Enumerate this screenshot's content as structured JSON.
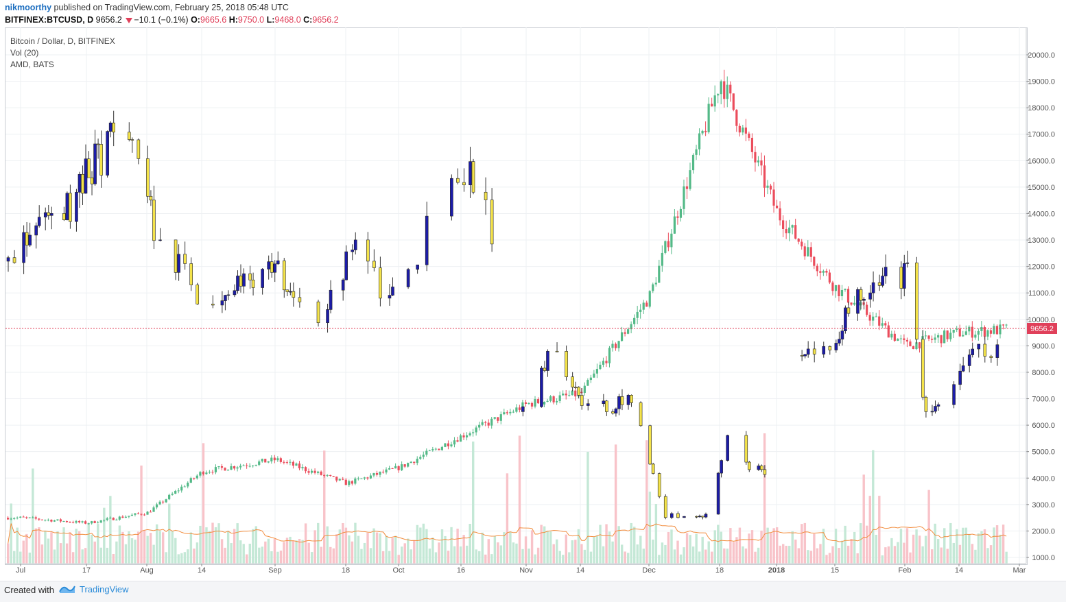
{
  "header": {
    "author": "nikmoorthy",
    "published_text": "published on TradingView.com, February 25, 2018 05:48 UTC",
    "symbol": "BITFINEX:BTCUSD, D",
    "last": "9656.2",
    "change": "−10.1 (−0.1%)",
    "o_label": "O:",
    "o_value": "9665.6",
    "h_label": "H:",
    "h_value": "9750.0",
    "l_label": "L:",
    "l_value": "9468.0",
    "c_label": "C:",
    "c_value": "9656.2"
  },
  "legend": {
    "line1": "Bitcoin / Dollar, D, BITFINEX",
    "line2": "Vol (20)",
    "line3": "AMD, BATS"
  },
  "footer": {
    "created_with": "Created with",
    "brand": "TradingView"
  },
  "price_badge": "9656.2",
  "colors": {
    "up": "#53b987",
    "down": "#eb4d5c",
    "vol_up": "#c4e8d6",
    "vol_down": "#f8c3c9",
    "overlay_up": "#1c1ca8",
    "overlay_down": "#f4e34a",
    "vol_ma": "#f28c3c",
    "axis": "#555555",
    "grid": "#eef0f3"
  },
  "chart_data": {
    "type": "candlestick",
    "y_axis": {
      "min": 1000,
      "max": 20000,
      "ticks": [
        1000,
        2000,
        3000,
        4000,
        5000,
        6000,
        7000,
        8000,
        9000,
        10000,
        11000,
        12000,
        13000,
        14000,
        15000,
        16000,
        17000,
        18000,
        19000,
        20000
      ]
    },
    "x_ticks": [
      "Jul",
      "17",
      "Aug",
      "14",
      "Sep",
      "18",
      "Oct",
      "16",
      "Nov",
      "14",
      "Dec",
      "18",
      "2018",
      "15",
      "Feb",
      "14",
      "Mar"
    ],
    "last_price": 9656.2,
    "series": [
      {
        "name": "Bitcoin / Dollar, D, BITFINEX",
        "anchors": [
          {
            "date": "Jul",
            "close": 2500
          },
          {
            "date": "17",
            "close": 2300
          },
          {
            "date": "Aug",
            "close": 2700
          },
          {
            "date": "14",
            "close": 4250
          },
          {
            "date": "Sep",
            "close": 4700
          },
          {
            "date": "18",
            "close": 3800
          },
          {
            "date": "Oct",
            "close": 4400
          },
          {
            "date": "16",
            "close": 5600
          },
          {
            "date": "Nov",
            "close": 6800
          },
          {
            "date": "14",
            "close": 7200
          },
          {
            "date": "Dec",
            "close": 10900
          },
          {
            "date": "18",
            "close": 19100
          },
          {
            "date": "2018",
            "close": 14000
          },
          {
            "date": "15",
            "close": 11200
          },
          {
            "date": "Feb",
            "close": 9000
          },
          {
            "date": "14",
            "close": 9500
          },
          {
            "date": "Mar",
            "close": 9656.2
          }
        ]
      },
      {
        "name": "Vol (20)"
      },
      {
        "name": "AMD, BATS"
      }
    ]
  }
}
